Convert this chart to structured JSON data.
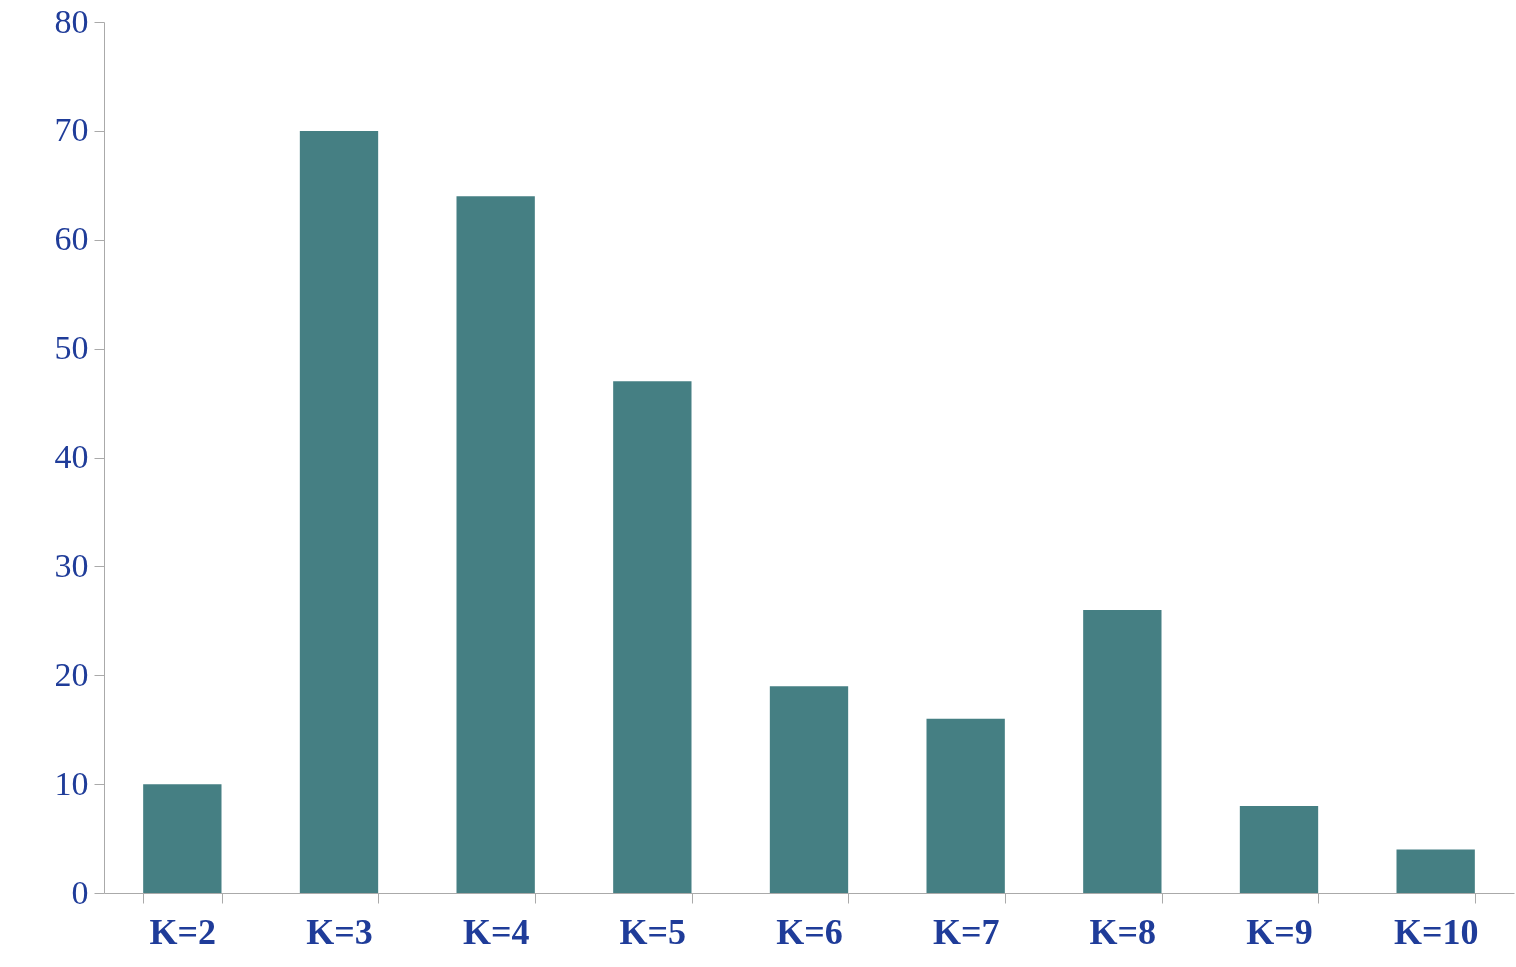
{
  "chart_data": {
    "type": "bar",
    "categories": [
      "K=2",
      "K=3",
      "K=4",
      "K=5",
      "K=6",
      "K=7",
      "K=8",
      "K=9",
      "K=10"
    ],
    "values": [
      10,
      70,
      64,
      47,
      19,
      16,
      26,
      8,
      4
    ],
    "color": "#457f83",
    "ylim": [
      0,
      80
    ],
    "yticks": [
      0,
      10,
      20,
      30,
      40,
      50,
      60,
      70,
      80
    ],
    "grid": false
  }
}
